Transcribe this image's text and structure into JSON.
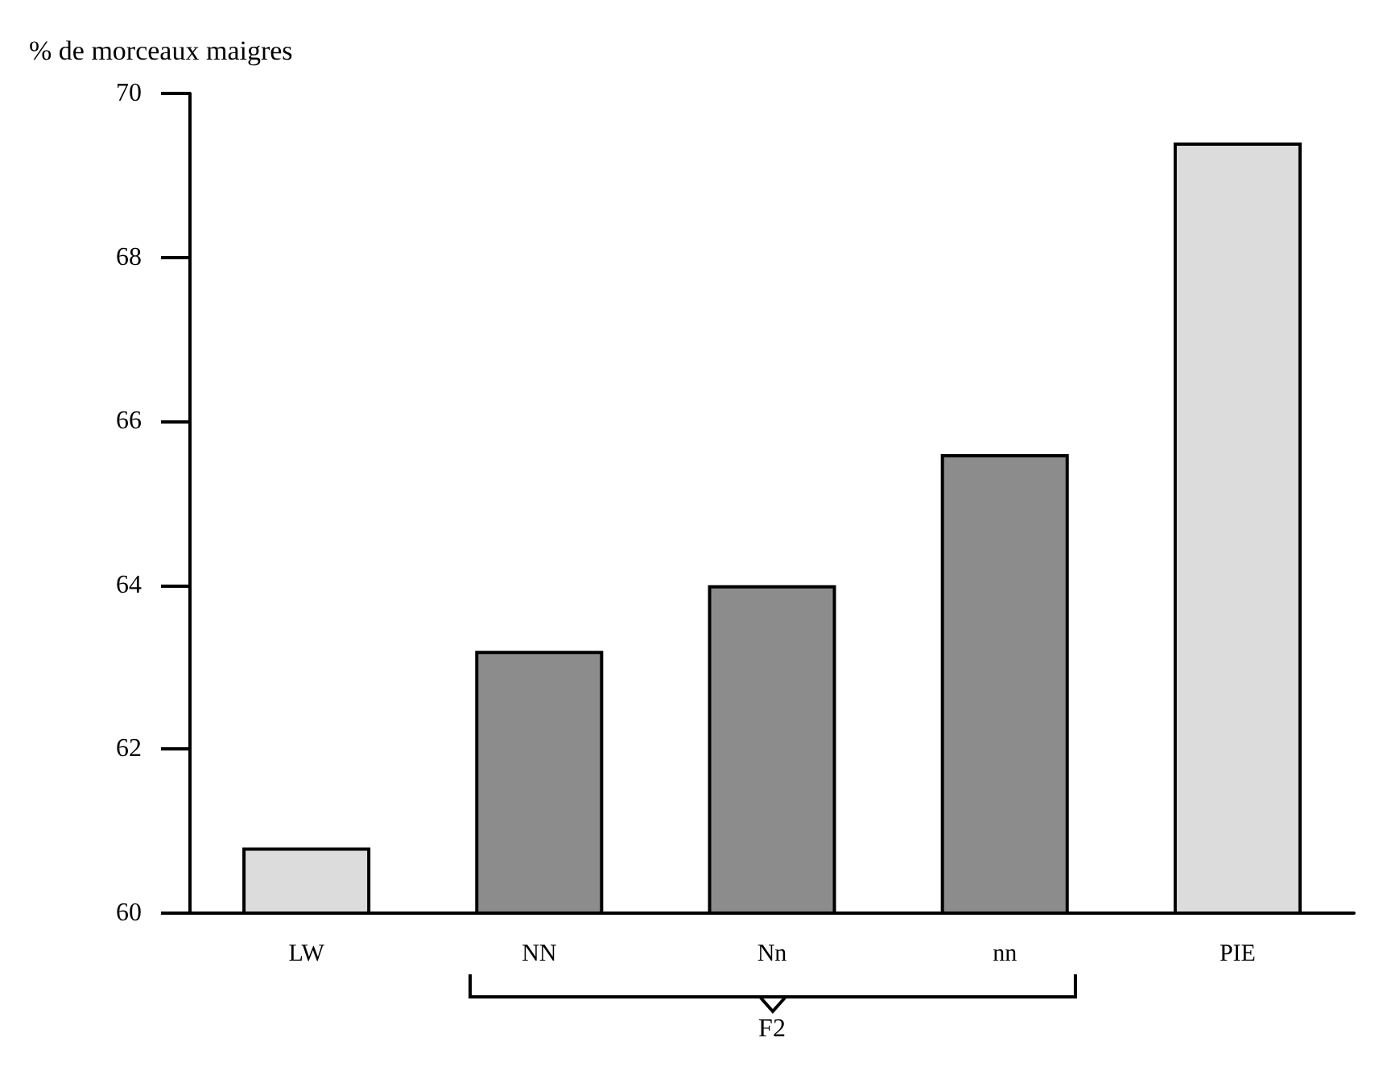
{
  "chart_data": {
    "type": "bar",
    "ylabel": "% de morceaux maigres",
    "categories": [
      "LW",
      "NN",
      "Nn",
      "nn",
      "PIE"
    ],
    "values": [
      60.8,
      63.2,
      64.0,
      65.6,
      69.4
    ],
    "colors": [
      "#dcdcdc",
      "#8c8c8c",
      "#8c8c8c",
      "#8c8c8c",
      "#dcdcdc"
    ],
    "ylim": [
      60,
      70
    ],
    "yticks": [
      60,
      62,
      64,
      66,
      68,
      70
    ],
    "grid": false,
    "annotations": [
      "F2"
    ]
  }
}
